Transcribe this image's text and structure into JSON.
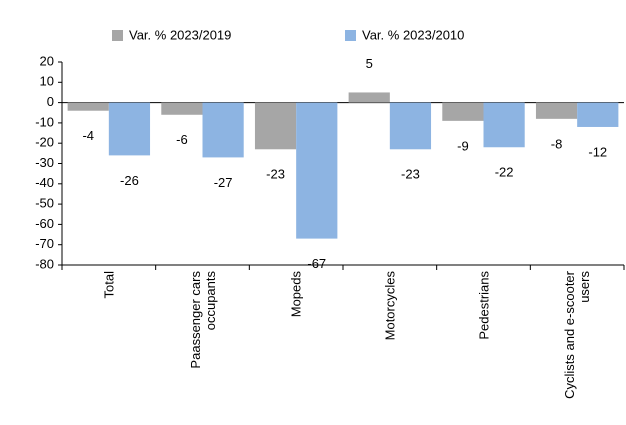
{
  "chart_data": {
    "type": "bar",
    "categories": [
      "Total",
      "Paassenger cars occupants",
      "Mopeds",
      "Motorcycles",
      "Pedestrians",
      "Cyclists and e-scooter users"
    ],
    "series": [
      {
        "name": "Var. % 2023/2019",
        "color": "#a6a6a6",
        "values": [
          -4,
          -6,
          -23,
          5,
          -9,
          -8
        ]
      },
      {
        "name": "Var. % 2023/2010",
        "color": "#8db4e2",
        "values": [
          -26,
          -27,
          -67,
          -23,
          -22,
          -12
        ]
      }
    ],
    "ylim": [
      -80,
      20
    ],
    "yticks": [
      20,
      10,
      0,
      -10,
      -20,
      -30,
      -40,
      -50,
      -60,
      -70,
      -80
    ],
    "legend": "top"
  }
}
